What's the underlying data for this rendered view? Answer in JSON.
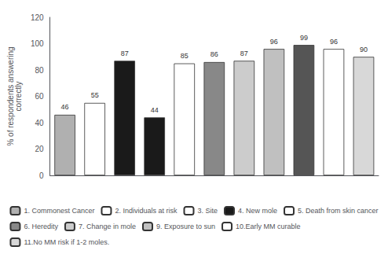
{
  "chart_data": {
    "type": "bar",
    "ylabel": "% of respondents answering\ncorrectly",
    "categories": [
      null,
      null,
      null,
      null,
      null,
      null,
      null,
      null,
      null,
      null,
      null
    ],
    "series": [
      {
        "name": "1. Commonest Cancer",
        "color": "#b0b0b0",
        "values": [
          46,
          null,
          null,
          null,
          null,
          null,
          null,
          null,
          null,
          null,
          null
        ]
      },
      {
        "name": "2. Individuals at risk",
        "color": "#ffffff",
        "values": [
          null,
          55,
          null,
          null,
          null,
          null,
          null,
          null,
          null,
          null,
          null
        ]
      },
      {
        "name": "3. Site",
        "color": "#ffffff",
        "values": [
          null,
          null,
          null,
          null,
          null,
          null,
          null,
          null,
          null,
          null,
          null
        ]
      },
      {
        "name": "4. New mole",
        "color": "#1a1a1a",
        "values": [
          null,
          null,
          87,
          44,
          null,
          null,
          null,
          null,
          null,
          null,
          null
        ]
      },
      {
        "name": "5. Death from skin cancer",
        "color": "#ffffff",
        "values": [
          null,
          null,
          null,
          null,
          85,
          null,
          null,
          null,
          null,
          null,
          null
        ]
      },
      {
        "name": "6. Heredity",
        "color": "#888888",
        "values": [
          null,
          null,
          null,
          null,
          null,
          86,
          null,
          null,
          null,
          null,
          null
        ]
      },
      {
        "name": "7. Change in mole",
        "color": "#cccccc",
        "values": [
          null,
          null,
          null,
          null,
          null,
          null,
          87,
          null,
          null,
          null,
          null
        ]
      },
      {
        "name": "9. Exposure to sun",
        "color": "#c0c0c0",
        "values": [
          null,
          null,
          null,
          null,
          null,
          null,
          null,
          96,
          null,
          null,
          null
        ]
      },
      {
        "color": "#555555",
        "values": [
          null,
          null,
          null,
          null,
          null,
          null,
          null,
          null,
          99,
          null,
          null
        ]
      },
      {
        "name": "10.Early MM curable",
        "color": "#ffffff",
        "values": [
          null,
          null,
          null,
          null,
          null,
          null,
          null,
          null,
          null,
          96,
          null
        ]
      },
      {
        "name": "11.No MM risk if 1-2 moles.",
        "color": "#d8d8d8",
        "values": [
          null,
          null,
          null,
          null,
          null,
          null,
          null,
          null,
          null,
          null,
          90
        ]
      }
    ],
    "ylim": [
      0,
      120
    ],
    "yticks": [
      0,
      20,
      40,
      60,
      80,
      100,
      120
    ],
    "grid": false,
    "data_labels": true,
    "legend": "bottom"
  }
}
